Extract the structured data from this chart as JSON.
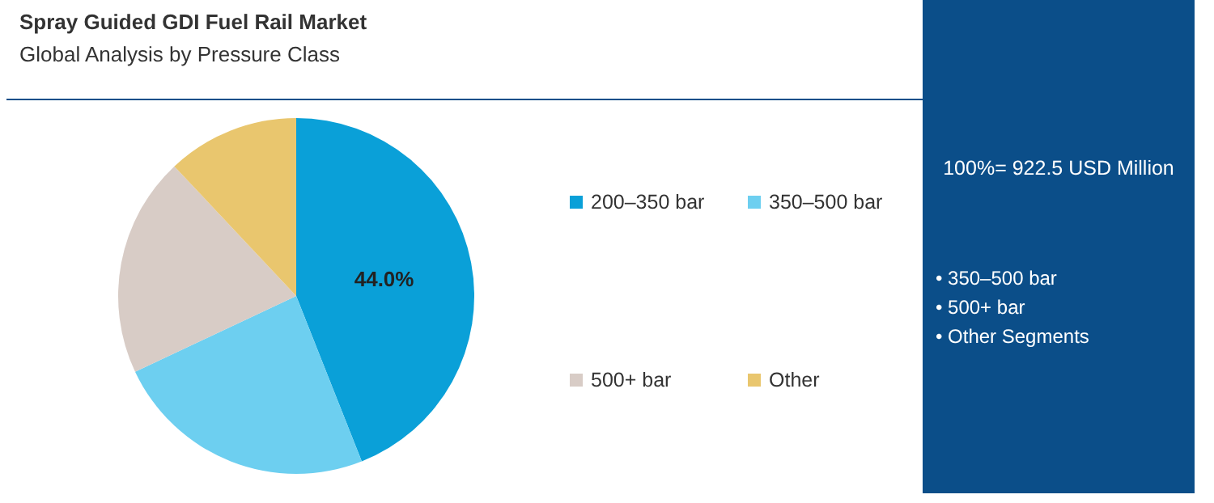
{
  "chart_data": {
    "type": "pie",
    "title": "Spray Guided GDI Fuel Rail Market",
    "subtitle": "Global Analysis by Pressure Class",
    "categories": [
      "200–350 bar",
      "350–500 bar",
      "500+ bar",
      "Other"
    ],
    "values": [
      44.0,
      24,
      20,
      12
    ],
    "colors": [
      "#0aa0d8",
      "#6dcff0",
      "#d8ccc6",
      "#e9c66e"
    ],
    "value_labels": [
      "44.0%",
      null,
      null,
      null
    ],
    "legend": "right",
    "annotations": [
      "100%= 922.5 USD Million",
      "• 350–500 bar",
      "• 500+ bar",
      "• Other Segments"
    ]
  }
}
